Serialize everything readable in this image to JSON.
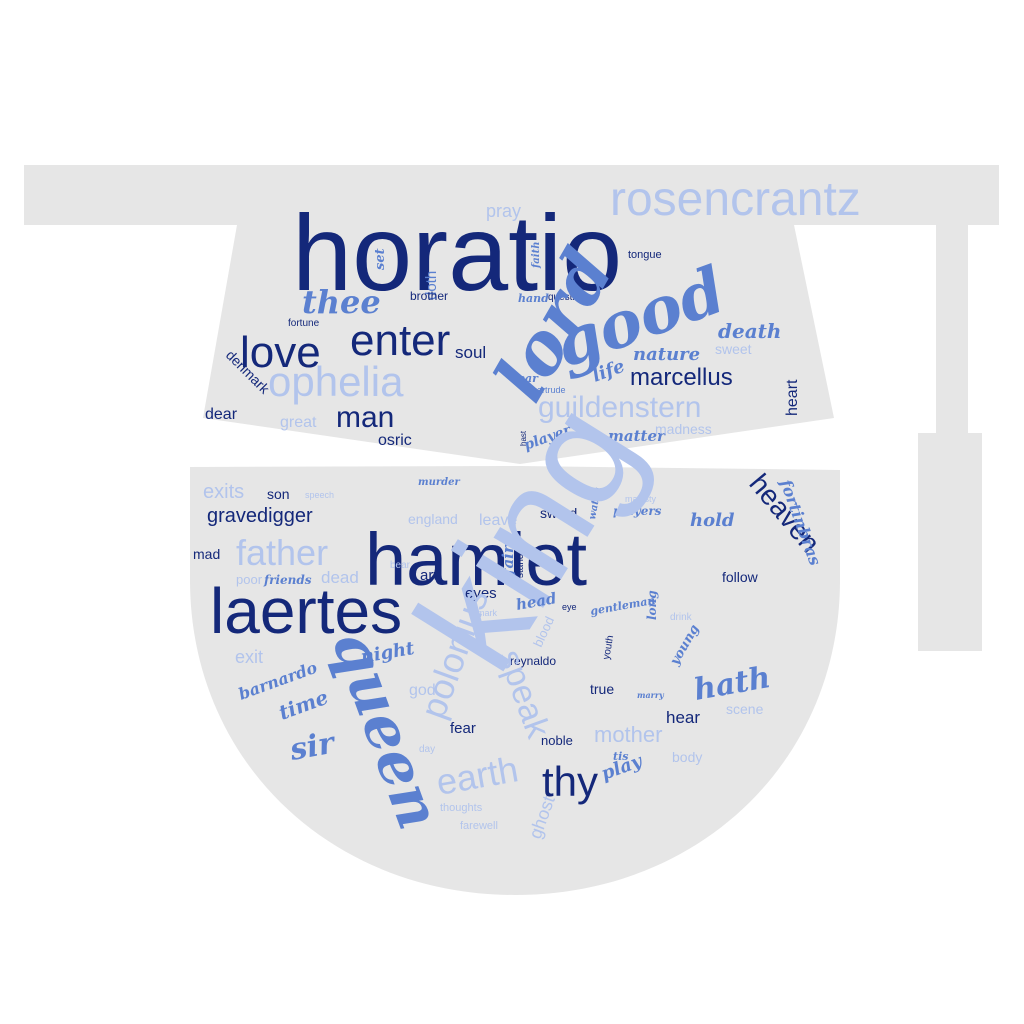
{
  "colors": {
    "background": "#ffffff",
    "shape": "#e6e6e6",
    "dark": "#14287a",
    "medium": "#5b80d0",
    "light": "#b2c4ec"
  },
  "words": [
    {
      "text": "horatio",
      "color": "dark",
      "style": "sans"
    },
    {
      "text": "rosencrantz",
      "color": "light",
      "style": "sans"
    },
    {
      "text": "pray",
      "color": "light",
      "style": "sans"
    },
    {
      "text": "set",
      "color": "medium",
      "style": "script"
    },
    {
      "text": "doth",
      "color": "medium",
      "style": "sans"
    },
    {
      "text": "faith",
      "color": "medium",
      "style": "script"
    },
    {
      "text": "tongue",
      "color": "dark",
      "style": "sans"
    },
    {
      "text": "thee",
      "color": "medium",
      "style": "script"
    },
    {
      "text": "brother",
      "color": "dark",
      "style": "sans"
    },
    {
      "text": "hand",
      "color": "medium",
      "style": "script"
    },
    {
      "text": "question",
      "color": "dark",
      "style": "sans"
    },
    {
      "text": "good",
      "color": "medium",
      "style": "script"
    },
    {
      "text": "fortune",
      "color": "dark",
      "style": "sans"
    },
    {
      "text": "love",
      "color": "dark",
      "style": "sans"
    },
    {
      "text": "enter",
      "color": "dark",
      "style": "sans"
    },
    {
      "text": "death",
      "color": "medium",
      "style": "script"
    },
    {
      "text": "soul",
      "color": "dark",
      "style": "sans"
    },
    {
      "text": "sweet",
      "color": "light",
      "style": "sans"
    },
    {
      "text": "nature",
      "color": "medium",
      "style": "script"
    },
    {
      "text": "life",
      "color": "medium",
      "style": "script"
    },
    {
      "text": "ophelia",
      "color": "light",
      "style": "sans"
    },
    {
      "text": "marcellus",
      "color": "dark",
      "style": "sans"
    },
    {
      "text": "denmark",
      "color": "dark",
      "style": "sans"
    },
    {
      "text": "ear",
      "color": "medium",
      "style": "script"
    },
    {
      "text": "gertrude",
      "color": "medium",
      "style": "sans"
    },
    {
      "text": "heart",
      "color": "dark",
      "style": "sans"
    },
    {
      "text": "lord",
      "color": "medium",
      "style": "script"
    },
    {
      "text": "guildenstern",
      "color": "light",
      "style": "sans"
    },
    {
      "text": "man",
      "color": "dark",
      "style": "sans"
    },
    {
      "text": "dear",
      "color": "dark",
      "style": "sans"
    },
    {
      "text": "great",
      "color": "light",
      "style": "sans"
    },
    {
      "text": "hast",
      "color": "dark",
      "style": "sans"
    },
    {
      "text": "matter",
      "color": "medium",
      "style": "script"
    },
    {
      "text": "madness",
      "color": "light",
      "style": "sans"
    },
    {
      "text": "osric",
      "color": "dark",
      "style": "sans"
    },
    {
      "text": "player",
      "color": "medium",
      "style": "script"
    },
    {
      "text": "exits",
      "color": "light",
      "style": "sans"
    },
    {
      "text": "son",
      "color": "dark",
      "style": "sans"
    },
    {
      "text": "speech",
      "color": "light",
      "style": "sans"
    },
    {
      "text": "murder",
      "color": "medium",
      "style": "script"
    },
    {
      "text": "majesty",
      "color": "light",
      "style": "sans"
    },
    {
      "text": "heaven",
      "color": "dark",
      "style": "sans"
    },
    {
      "text": "fortinbras",
      "color": "medium",
      "style": "script"
    },
    {
      "text": "gravedigger",
      "color": "dark",
      "style": "sans"
    },
    {
      "text": "hamlet",
      "color": "dark",
      "style": "sans"
    },
    {
      "text": "england",
      "color": "light",
      "style": "sans"
    },
    {
      "text": "leave",
      "color": "light",
      "style": "sans"
    },
    {
      "text": "sword",
      "color": "dark",
      "style": "sans"
    },
    {
      "text": "watch",
      "color": "medium",
      "style": "script"
    },
    {
      "text": "players",
      "color": "medium",
      "style": "script"
    },
    {
      "text": "hold",
      "color": "medium",
      "style": "script"
    },
    {
      "text": "father",
      "color": "light",
      "style": "sans"
    },
    {
      "text": "mad",
      "color": "dark",
      "style": "sans"
    },
    {
      "text": "poor",
      "color": "light",
      "style": "sans"
    },
    {
      "text": "friends",
      "color": "medium",
      "style": "script"
    },
    {
      "text": "dead",
      "color": "light",
      "style": "sans"
    },
    {
      "text": "bear",
      "color": "light",
      "style": "sans"
    },
    {
      "text": "art",
      "color": "dark",
      "style": "sans"
    },
    {
      "text": "fair",
      "color": "medium",
      "style": "script"
    },
    {
      "text": "stand",
      "color": "dark",
      "style": "sans"
    },
    {
      "text": "king",
      "color": "light",
      "style": "sans"
    },
    {
      "text": "follow",
      "color": "dark",
      "style": "sans"
    },
    {
      "text": "laertes",
      "color": "dark",
      "style": "sans"
    },
    {
      "text": "eyes",
      "color": "dark",
      "style": "sans"
    },
    {
      "text": "mark",
      "color": "light",
      "style": "sans"
    },
    {
      "text": "head",
      "color": "medium",
      "style": "script"
    },
    {
      "text": "eye",
      "color": "dark",
      "style": "sans"
    },
    {
      "text": "gentleman",
      "color": "medium",
      "style": "script"
    },
    {
      "text": "blood",
      "color": "light",
      "style": "sans"
    },
    {
      "text": "youth",
      "color": "dark",
      "style": "sans"
    },
    {
      "text": "long",
      "color": "medium",
      "style": "script"
    },
    {
      "text": "drink",
      "color": "light",
      "style": "sans"
    },
    {
      "text": "young",
      "color": "medium",
      "style": "script"
    },
    {
      "text": "reynaldo",
      "color": "dark",
      "style": "sans"
    },
    {
      "text": "polonius",
      "color": "light",
      "style": "sans"
    },
    {
      "text": "exit",
      "color": "light",
      "style": "sans"
    },
    {
      "text": "night",
      "color": "medium",
      "style": "script"
    },
    {
      "text": "queen",
      "color": "medium",
      "style": "script"
    },
    {
      "text": "barnardo",
      "color": "medium",
      "style": "script"
    },
    {
      "text": "god",
      "color": "light",
      "style": "sans"
    },
    {
      "text": "speak",
      "color": "light",
      "style": "sans"
    },
    {
      "text": "hath",
      "color": "medium",
      "style": "script"
    },
    {
      "text": "true",
      "color": "dark",
      "style": "sans"
    },
    {
      "text": "marry",
      "color": "medium",
      "style": "script"
    },
    {
      "text": "time",
      "color": "medium",
      "style": "script"
    },
    {
      "text": "hear",
      "color": "dark",
      "style": "sans"
    },
    {
      "text": "scene",
      "color": "light",
      "style": "sans"
    },
    {
      "text": "sir",
      "color": "medium",
      "style": "script"
    },
    {
      "text": "fear",
      "color": "dark",
      "style": "sans"
    },
    {
      "text": "mother",
      "color": "light",
      "style": "sans"
    },
    {
      "text": "noble",
      "color": "dark",
      "style": "sans"
    },
    {
      "text": "day",
      "color": "light",
      "style": "sans"
    },
    {
      "text": "tis",
      "color": "medium",
      "style": "script"
    },
    {
      "text": "body",
      "color": "light",
      "style": "sans"
    },
    {
      "text": "earth",
      "color": "light",
      "style": "sans"
    },
    {
      "text": "thy",
      "color": "dark",
      "style": "sans"
    },
    {
      "text": "play",
      "color": "medium",
      "style": "script"
    },
    {
      "text": "thoughts",
      "color": "light",
      "style": "sans"
    },
    {
      "text": "farewell",
      "color": "light",
      "style": "sans"
    },
    {
      "text": "ghost",
      "color": "light",
      "style": "sans"
    }
  ]
}
